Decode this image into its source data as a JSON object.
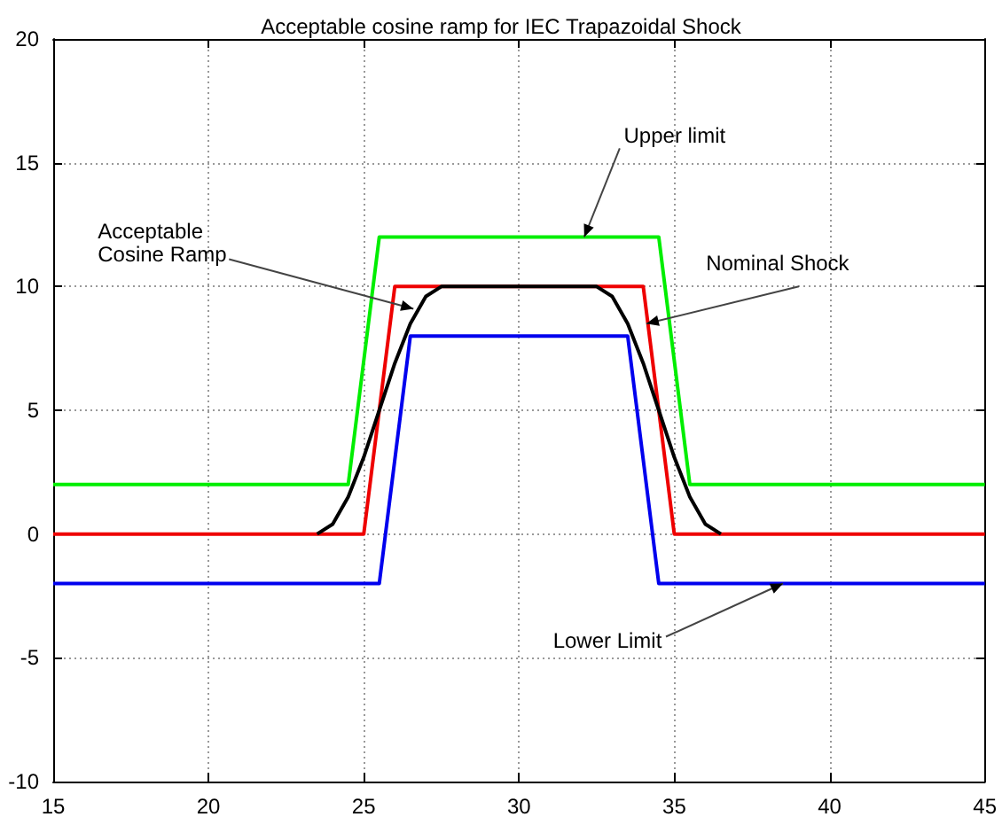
{
  "chart_data": {
    "type": "line",
    "title": "Acceptable cosine ramp for IEC Trapazoidal Shock",
    "xlim": [
      15,
      45
    ],
    "xticks": [
      15,
      20,
      25,
      30,
      35,
      40,
      45
    ],
    "ylim": [
      -10,
      20
    ],
    "yticks": [
      -10,
      -5,
      0,
      5,
      10,
      15,
      20
    ],
    "grid": true,
    "marker": "none",
    "line_style": "solid",
    "series": [
      {
        "color": "#00ee00",
        "x": [
          15,
          24.5,
          25.5,
          34.5,
          35.5,
          45
        ],
        "values": [
          2,
          2,
          12,
          12,
          2,
          2
        ]
      },
      {
        "color": "#ee0000",
        "x": [
          15,
          25,
          26,
          34,
          35,
          45
        ],
        "values": [
          0,
          0,
          10,
          10,
          0,
          0
        ]
      },
      {
        "color": "#0000ee",
        "x": [
          15,
          25.5,
          26.5,
          33.5,
          34.5,
          45
        ],
        "values": [
          -2,
          -2,
          8,
          8,
          -2,
          -2
        ]
      },
      {
        "color": "#000000",
        "x": [
          23.5,
          24,
          24.5,
          25,
          25.5,
          26,
          26.5,
          27,
          27.5,
          32.5,
          33,
          33.5,
          34,
          34.5,
          35,
          35.5,
          36,
          36.5
        ],
        "values": [
          0,
          0.4,
          1.5,
          3.1,
          5,
          6.9,
          8.5,
          9.6,
          10,
          10,
          9.6,
          8.5,
          6.9,
          5,
          3.1,
          1.5,
          0.4,
          0
        ]
      }
    ],
    "annotations": [
      {
        "text": "Upper limit",
        "x": 32.1,
        "y": 12
      },
      {
        "text": "Acceptable\nCosine Ramp",
        "x": 26.6,
        "y": 9.1
      },
      {
        "text": "Nominal Shock",
        "x": 34.1,
        "y": 8.5
      },
      {
        "text": "Lower Limit",
        "x": 38.5,
        "y": -2
      }
    ]
  }
}
